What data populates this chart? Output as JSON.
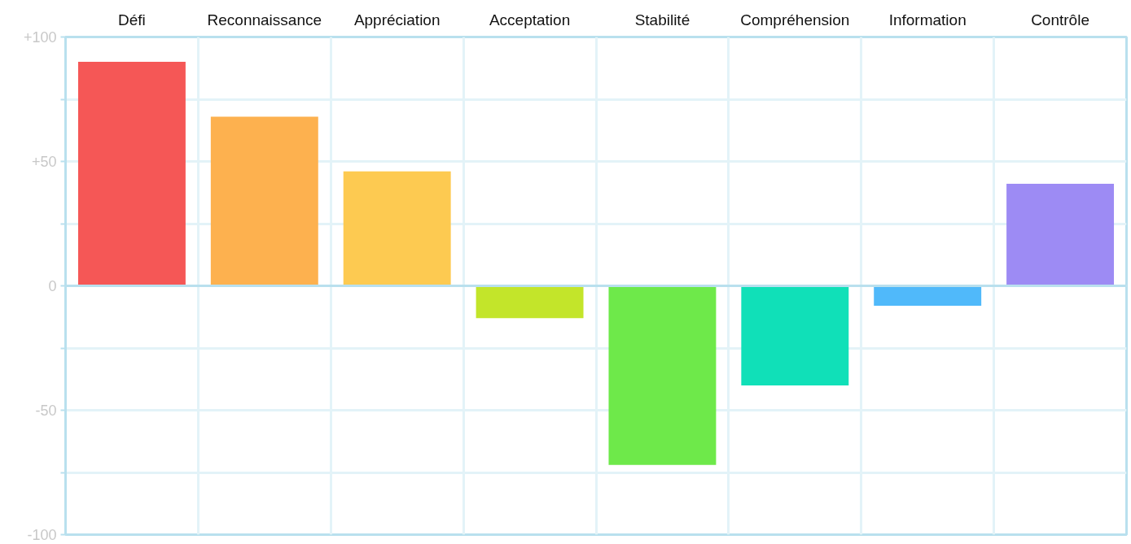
{
  "chart_data": {
    "type": "bar",
    "categories": [
      "Défi",
      "Reconnaissance",
      "Appréciation",
      "Acceptation",
      "Stabilité",
      "Compréhension",
      "Information",
      "Contrôle"
    ],
    "values": [
      90,
      68,
      46,
      -13,
      -72,
      -40,
      -8,
      41
    ],
    "colors": [
      "#f55756",
      "#fdb14f",
      "#fdca51",
      "#c3e52a",
      "#6ee94a",
      "#10e0b8",
      "#50b9fa",
      "#9d8bf4"
    ],
    "ylim": [
      -100,
      100
    ],
    "yticks": [
      {
        "value": -100,
        "label": "-100"
      },
      {
        "value": -75,
        "label": null
      },
      {
        "value": -50,
        "label": "-50"
      },
      {
        "value": -25,
        "label": null
      },
      {
        "value": 0,
        "label": "0"
      },
      {
        "value": 25,
        "label": null
      },
      {
        "value": 50,
        "label": "+50"
      },
      {
        "value": 75,
        "label": null
      },
      {
        "value": 100,
        "label": "+100"
      }
    ],
    "ref_lines": [
      {
        "axis": "y",
        "value": 0,
        "color": "#b9e0ee"
      }
    ],
    "grid": true
  }
}
